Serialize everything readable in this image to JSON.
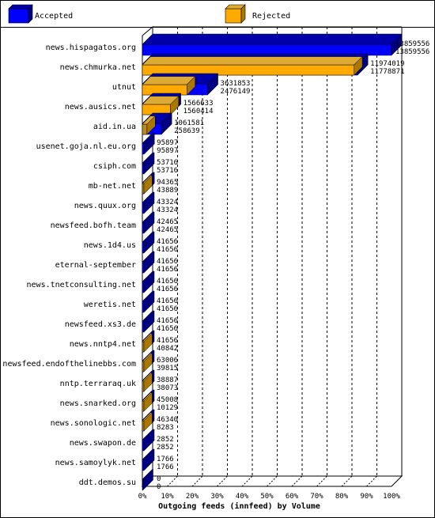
{
  "colors": {
    "accepted": "#0000ff",
    "accepted_top": "#0000aa",
    "accepted_side": "#000080",
    "rejected": "#ffaa00",
    "rejected_top": "#ddaa33",
    "rejected_side": "#aa7700",
    "small_rejected": "#bb8822"
  },
  "legend": {
    "accepted_label": "Accepted",
    "rejected_label": "Rejected"
  },
  "chart_data": {
    "type": "bar",
    "orientation": "horizontal",
    "title": "",
    "xlabel": "Outgoing feeds (innfeed) by Volume",
    "ylabel": "",
    "xlim": [
      0,
      100
    ],
    "x_ticks": [
      "0%",
      "10%",
      "20%",
      "30%",
      "40%",
      "50%",
      "60%",
      "70%",
      "80%",
      "90%",
      "100%"
    ],
    "legend_position": "top",
    "categories": [
      "news.hispagatos.org",
      "news.chmurka.net",
      "utnut",
      "news.ausics.net",
      "aid.in.ua",
      "usenet.goja.nl.eu.org",
      "csiph.com",
      "mb-net.net",
      "news.quux.org",
      "newsfeed.bofh.team",
      "news.1d4.us",
      "eternal-september",
      "news.tnetconsulting.net",
      "weretis.net",
      "newsfeed.xs3.de",
      "news.nntp4.net",
      "newsfeed.endofthelinebbs.com",
      "nntp.terraraq.uk",
      "news.snarked.org",
      "news.sonologic.net",
      "news.swapon.de",
      "news.samoylyk.net",
      "ddt.demos.su"
    ],
    "series": [
      {
        "name": "Accepted",
        "values": [
          13859556,
          11974019,
          3631853,
          1566633,
          1061581,
          95897,
          53716,
          94365,
          43324,
          42465,
          41656,
          41656,
          41656,
          41656,
          41656,
          41656,
          63006,
          38887,
          45008,
          46340,
          2852,
          1766,
          0
        ]
      },
      {
        "name": "Rejected",
        "values": [
          13859556,
          11778871,
          2476149,
          1560414,
          258639,
          95897,
          53716,
          43889,
          43324,
          42465,
          41656,
          41656,
          41656,
          41656,
          41656,
          40842,
          39815,
          38073,
          10129,
          8283,
          2852,
          1766,
          0
        ]
      }
    ]
  }
}
